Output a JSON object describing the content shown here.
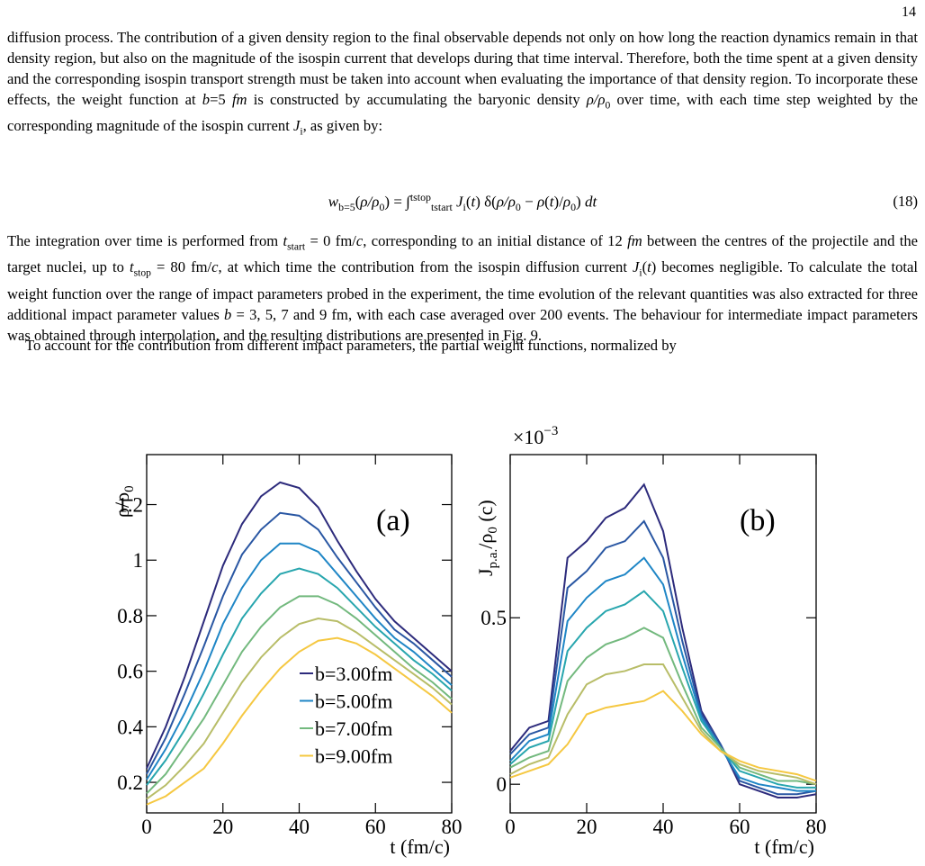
{
  "page_number": "14",
  "paragraphs": [
    [
      {
        "t": "diffusion process. The contribution of a given density region to the final observable depends not only on how long the reaction dynamics remain in that density region, but also on the magnitude of the isospin current that develops during that time interval. Therefore, both the time spent at a given density and the corresponding isospin transport strength must be taken into account when evaluating the importance of that density region. To incorporate these effects, the weight function at "
      },
      {
        "i": "b"
      },
      {
        "t": "=5 "
      },
      {
        "i": "fm"
      },
      {
        "t": " is constructed by accumulating the baryonic density "
      },
      {
        "i": "ρ/ρ"
      },
      {
        "sub": "0"
      },
      {
        "t": " over time, with each time step weighted by the corresponding magnitude of the isospin current "
      },
      {
        "i": "J"
      },
      {
        "sub": "i"
      },
      {
        "t": ", as given by:"
      }
    ],
    [
      {
        "t": "The integration over time is performed from "
      },
      {
        "i": "t"
      },
      {
        "sub": "start"
      },
      {
        "t": " = 0 fm/"
      },
      {
        "i": "c"
      },
      {
        "t": ", corresponding to an initial distance of 12 "
      },
      {
        "i": "fm"
      },
      {
        "t": " between the centres of the projectile and the target nuclei, up to "
      },
      {
        "i": "t"
      },
      {
        "sub": "stop"
      },
      {
        "t": " = 80 fm/"
      },
      {
        "i": "c"
      },
      {
        "t": ", at which time the contribution from the isospin diffusion current "
      },
      {
        "i": "J"
      },
      {
        "sub": "i"
      },
      {
        "t": "("
      },
      {
        "i": "t"
      },
      {
        "t": ") becomes negligible. To calculate the total weight function over the range of impact parameters probed in the experiment, the time evolution of the relevant quantities was also extracted for three additional impact parameter values "
      },
      {
        "i": "b"
      },
      {
        "t": " = 3, 5, 7 and 9 fm, with each case averaged over 200 events. The behaviour for intermediate impact parameters was obtained through interpolation, and the resulting distributions are presented in Fig. 9."
      }
    ],
    [
      {
        "t": "To account for the contribution from different impact parameters, the partial weight functions, normalized by"
      }
    ]
  ],
  "equation": [
    {
      "i": "w"
    },
    {
      "sub": "b=5"
    },
    {
      "t": "("
    },
    {
      "i": "ρ/ρ"
    },
    {
      "sub": "0"
    },
    {
      "t": ") = ∫"
    },
    {
      "sup": "tstop"
    },
    {
      "sub": "tstart"
    },
    {
      "t": " "
    },
    {
      "i": "J"
    },
    {
      "sub": "i"
    },
    {
      "t": "("
    },
    {
      "i": "t"
    },
    {
      "t": ") δ("
    },
    {
      "i": "ρ/ρ"
    },
    {
      "sub": "0"
    },
    {
      "t": " − "
    },
    {
      "i": "ρ"
    },
    {
      "t": "("
    },
    {
      "i": "t"
    },
    {
      "t": ")/"
    },
    {
      "i": "ρ"
    },
    {
      "sub": "0"
    },
    {
      "t": ") "
    },
    {
      "i": "dt"
    }
  ],
  "equation_number": "(18)",
  "chart_data": [
    {
      "type": "line",
      "panel_label": "(a)",
      "xlabel": "t (fm/c)",
      "ylabel_parts": [
        "ρ/ρ",
        "0"
      ],
      "x": [
        0,
        5,
        10,
        15,
        20,
        25,
        30,
        35,
        40,
        45,
        50,
        55,
        60,
        65,
        70,
        75,
        80
      ],
      "xlim": [
        0,
        80
      ],
      "xticks": [
        0,
        20,
        40,
        60,
        80
      ],
      "ylim": [
        0.09,
        1.38
      ],
      "yticks": [
        0.2,
        0.4,
        0.6,
        0.8,
        1,
        1.2
      ],
      "legend": "lower center",
      "series": [
        {
          "name": "b=3.00fm",
          "color": "#2d2b7c",
          "values": [
            0.25,
            0.4,
            0.58,
            0.78,
            0.98,
            1.13,
            1.23,
            1.28,
            1.26,
            1.19,
            1.07,
            0.96,
            0.86,
            0.78,
            0.72,
            0.66,
            0.6
          ]
        },
        {
          "color": "#2a57a3",
          "values": [
            0.23,
            0.36,
            0.52,
            0.69,
            0.87,
            1.02,
            1.11,
            1.17,
            1.16,
            1.11,
            1.01,
            0.92,
            0.83,
            0.75,
            0.7,
            0.64,
            0.58
          ]
        },
        {
          "name": "b=5.00fm",
          "color": "#1f86c6",
          "values": [
            0.21,
            0.32,
            0.45,
            0.6,
            0.77,
            0.9,
            1.0,
            1.06,
            1.06,
            1.03,
            0.95,
            0.87,
            0.79,
            0.72,
            0.67,
            0.61,
            0.55
          ]
        },
        {
          "color": "#28a6ae",
          "values": [
            0.19,
            0.28,
            0.39,
            0.52,
            0.66,
            0.79,
            0.88,
            0.95,
            0.97,
            0.95,
            0.9,
            0.83,
            0.76,
            0.7,
            0.64,
            0.59,
            0.53
          ]
        },
        {
          "name": "b=7.00fm",
          "color": "#73b97e",
          "values": [
            0.16,
            0.23,
            0.33,
            0.43,
            0.55,
            0.67,
            0.76,
            0.83,
            0.87,
            0.87,
            0.84,
            0.79,
            0.73,
            0.67,
            0.61,
            0.56,
            0.5
          ]
        },
        {
          "color": "#b8bd68",
          "values": [
            0.14,
            0.19,
            0.26,
            0.34,
            0.45,
            0.56,
            0.65,
            0.72,
            0.77,
            0.79,
            0.78,
            0.74,
            0.69,
            0.64,
            0.59,
            0.54,
            0.48
          ]
        },
        {
          "name": "b=9.00fm",
          "color": "#f5c842",
          "values": [
            0.12,
            0.15,
            0.2,
            0.25,
            0.34,
            0.44,
            0.53,
            0.61,
            0.67,
            0.71,
            0.72,
            0.7,
            0.66,
            0.61,
            0.56,
            0.51,
            0.45
          ]
        }
      ]
    },
    {
      "type": "line",
      "panel_label": "(b)",
      "xlabel": "t (fm/c)",
      "ylabel_parts": [
        "J",
        "p.a.",
        "/ρ",
        "0",
        " (c)"
      ],
      "multiplier": "×10",
      "multiplier_exp": "−3",
      "x": [
        0,
        5,
        10,
        15,
        20,
        25,
        30,
        35,
        40,
        45,
        50,
        55,
        60,
        65,
        70,
        75,
        80
      ],
      "xlim": [
        0,
        80
      ],
      "xticks": [
        0,
        20,
        40,
        60,
        80
      ],
      "ylim": [
        -0.086,
        0.99
      ],
      "yticks": [
        0,
        0.5
      ],
      "series": [
        {
          "color": "#2d2b7c",
          "values": [
            0.1,
            0.17,
            0.19,
            0.68,
            0.73,
            0.8,
            0.83,
            0.9,
            0.76,
            0.47,
            0.22,
            0.12,
            0.0,
            -0.02,
            -0.04,
            -0.04,
            -0.03
          ]
        },
        {
          "color": "#2a57a3",
          "values": [
            0.09,
            0.15,
            0.17,
            0.59,
            0.64,
            0.71,
            0.73,
            0.79,
            0.68,
            0.43,
            0.21,
            0.12,
            0.01,
            -0.01,
            -0.03,
            -0.03,
            -0.02
          ]
        },
        {
          "color": "#1f86c6",
          "values": [
            0.07,
            0.13,
            0.15,
            0.49,
            0.56,
            0.61,
            0.63,
            0.68,
            0.6,
            0.39,
            0.2,
            0.11,
            0.02,
            0.0,
            -0.01,
            -0.02,
            -0.02
          ]
        },
        {
          "color": "#28a6ae",
          "values": [
            0.06,
            0.11,
            0.13,
            0.4,
            0.47,
            0.52,
            0.54,
            0.58,
            0.52,
            0.35,
            0.19,
            0.11,
            0.04,
            0.02,
            0.0,
            -0.01,
            -0.01
          ]
        },
        {
          "color": "#73b97e",
          "values": [
            0.05,
            0.08,
            0.1,
            0.31,
            0.38,
            0.42,
            0.44,
            0.47,
            0.44,
            0.3,
            0.17,
            0.11,
            0.05,
            0.03,
            0.01,
            0.01,
            0.0
          ]
        },
        {
          "color": "#b8bd68",
          "values": [
            0.03,
            0.06,
            0.08,
            0.21,
            0.3,
            0.33,
            0.34,
            0.36,
            0.36,
            0.26,
            0.16,
            0.1,
            0.06,
            0.04,
            0.03,
            0.02,
            0.0
          ]
        },
        {
          "color": "#f5c842",
          "values": [
            0.02,
            0.04,
            0.06,
            0.12,
            0.21,
            0.23,
            0.24,
            0.25,
            0.28,
            0.22,
            0.15,
            0.1,
            0.07,
            0.05,
            0.04,
            0.03,
            0.01
          ]
        }
      ]
    }
  ]
}
